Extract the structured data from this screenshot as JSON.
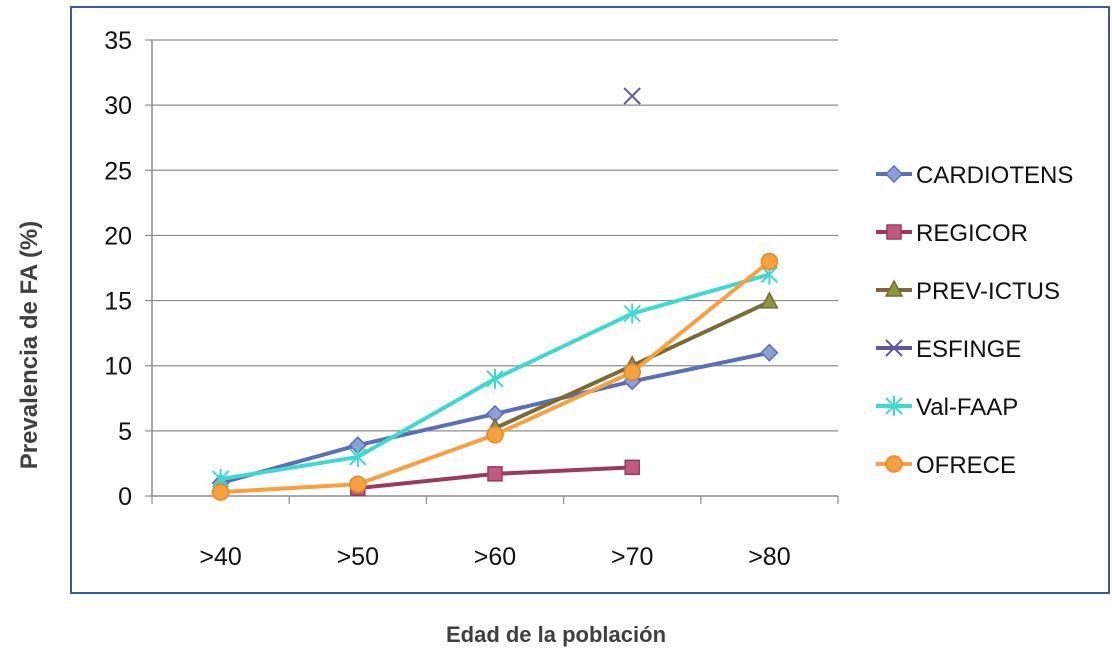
{
  "chart_data": {
    "type": "line",
    "title": "",
    "xlabel": "Edad de la población",
    "ylabel": "Prevalencia de FA (%)",
    "categories": [
      ">40",
      ">50",
      ">60",
      ">70",
      ">80"
    ],
    "ylim": [
      0,
      35
    ],
    "yticks": [
      0,
      5,
      10,
      15,
      20,
      25,
      30,
      35
    ],
    "grid": true,
    "legend_position": "right",
    "series": [
      {
        "name": "CARDIOTENS",
        "color": "#5b6fb5",
        "fill": "#8e9fd8",
        "marker": "diamond",
        "values": [
          1.0,
          3.9,
          6.3,
          8.8,
          11.0
        ]
      },
      {
        "name": "REGICOR",
        "color": "#9a3a5f",
        "fill": "#c05a82",
        "marker": "square",
        "values": [
          null,
          0.6,
          1.7,
          2.2,
          null
        ]
      },
      {
        "name": "PREV-ICTUS",
        "color": "#7a6a3a",
        "fill": "#8a9a3a",
        "marker": "triangle",
        "values": [
          null,
          null,
          5.2,
          10.0,
          14.9
        ]
      },
      {
        "name": "ESFINGE",
        "color": "#5a5aa0",
        "fill": "#5a5aa0",
        "marker": "x",
        "values": [
          null,
          null,
          null,
          30.7,
          null
        ]
      },
      {
        "name": "Val-FAAP",
        "color": "#3fd8d0",
        "fill": "#3fd8d0",
        "marker": "asterisk",
        "values": [
          1.3,
          3.0,
          9.0,
          14.0,
          17.0
        ]
      },
      {
        "name": "OFRECE",
        "color": "#f7a040",
        "fill": "#f7a040",
        "marker": "circle",
        "values": [
          0.3,
          0.9,
          4.7,
          9.5,
          18.0
        ]
      }
    ]
  }
}
